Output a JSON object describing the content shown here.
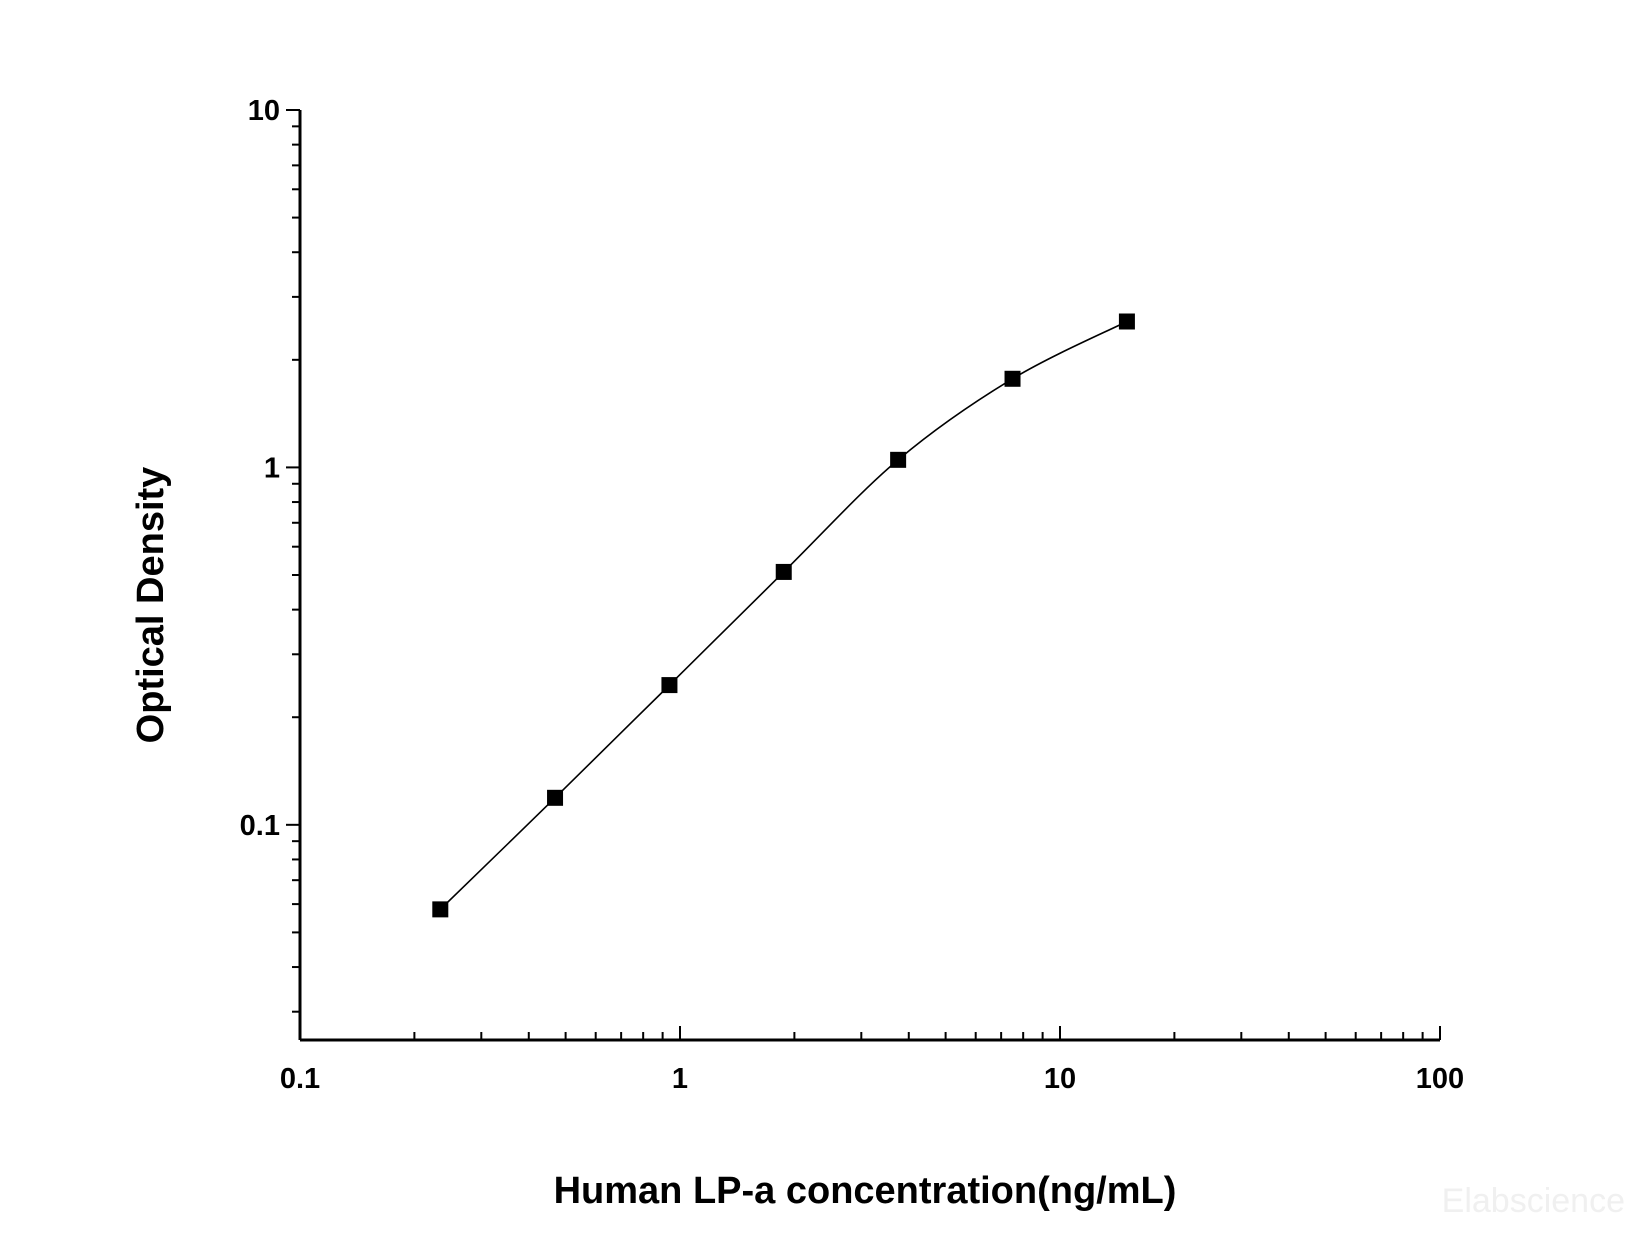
{
  "chart_data": {
    "type": "scatter",
    "title": "",
    "xlabel": "Human LP-a concentration(ng/mL)",
    "ylabel": "Optical Density",
    "xscale": "log",
    "yscale": "log",
    "xlim": [
      0.1,
      100
    ],
    "ylim": [
      0.025,
      10
    ],
    "xticks": [
      "0.1",
      "1",
      "10",
      "100"
    ],
    "yticks": [
      "0.1",
      "1",
      "10"
    ],
    "grid": false,
    "legend": "none",
    "series": [
      {
        "x": [
          0.234,
          0.469,
          0.938,
          1.875,
          3.75,
          7.5,
          15
        ],
        "y": [
          0.058,
          0.119,
          0.246,
          0.51,
          1.05,
          1.77,
          2.56
        ],
        "marker": "square",
        "fit": "smooth-curve"
      }
    ],
    "watermark": "Elabscience"
  }
}
